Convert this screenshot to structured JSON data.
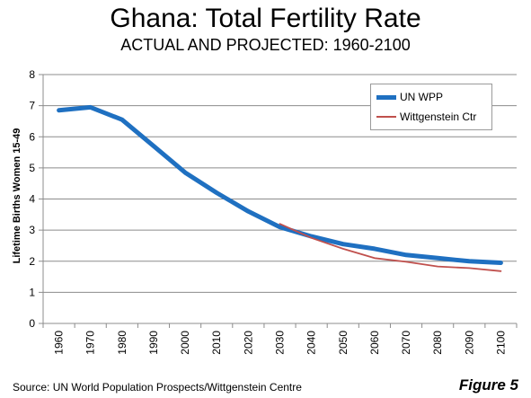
{
  "header": {
    "title": "Ghana: Total Fertility Rate",
    "subtitle": "ACTUAL AND PROJECTED: 1960-2100"
  },
  "footer": {
    "source": "Source: UN World Population Prospects/Wittgenstein Centre",
    "figure_label": "Figure 5"
  },
  "chart_data": {
    "type": "line",
    "title": "Ghana: Total Fertility Rate",
    "subtitle": "ACTUAL AND PROJECTED: 1960-2100",
    "xlabel": "",
    "ylabel": "Lifetime Births Women 15-49",
    "categories": [
      "1960",
      "1970",
      "1980",
      "1990",
      "2000",
      "2010",
      "2020",
      "2030",
      "2040",
      "2050",
      "2060",
      "2070",
      "2080",
      "2090",
      "2100"
    ],
    "yticks": [
      "0",
      "1",
      "2",
      "3",
      "4",
      "5",
      "6",
      "7",
      "8"
    ],
    "ylim": [
      0,
      8
    ],
    "grid": true,
    "legend": "top-right",
    "series": [
      {
        "name": "UN WPP",
        "color": "#1f70c1",
        "values": [
          6.85,
          6.95,
          6.55,
          5.7,
          4.85,
          4.2,
          3.6,
          3.1,
          2.8,
          2.55,
          2.4,
          2.2,
          2.1,
          2.0,
          1.95
        ]
      },
      {
        "name": "Wittgenstein Ctr",
        "color": "#c0504d",
        "values": [
          null,
          null,
          null,
          null,
          null,
          null,
          null,
          3.2,
          2.75,
          2.4,
          2.1,
          1.98,
          1.83,
          1.78,
          1.68
        ]
      }
    ]
  }
}
